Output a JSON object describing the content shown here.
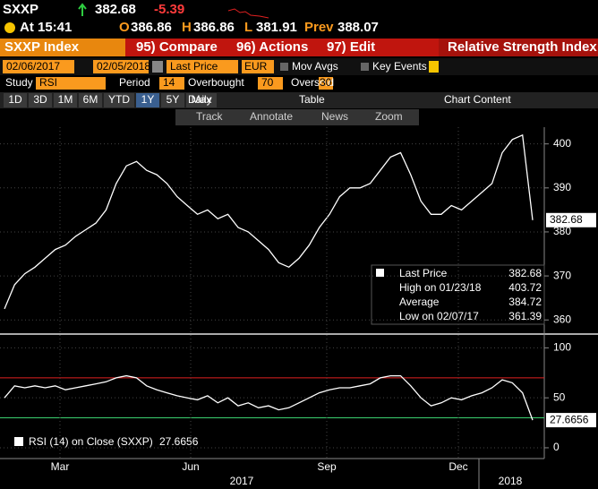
{
  "header": {
    "ticker": "SXXP",
    "last": 382.68,
    "change": -5.39,
    "time": "At 15:41",
    "open_label": "O",
    "open": 386.86,
    "high_label": "H",
    "high": 386.86,
    "low_label": "L",
    "low": 381.91,
    "prev_label": "Prev",
    "prev": 388.07
  },
  "toolbar": {
    "security": "SXXP Index",
    "compare": "95) Compare",
    "actions": "96) Actions",
    "edit": "97) Edit",
    "function_title": "Relative Strength Index"
  },
  "settings": {
    "start_date": "02/06/2017",
    "end_date": "02/05/2018",
    "field": "Last Price",
    "currency": "EUR",
    "mov_avgs": "Mov Avgs",
    "key_events": "Key Events"
  },
  "study": {
    "label": "Study",
    "name": "RSI",
    "period_label": "Period",
    "period": 14,
    "overbought_label": "Overbought",
    "overbought": 70,
    "oversold_label": "Oversold",
    "oversold": 30
  },
  "ranges": [
    "1D",
    "3D",
    "1M",
    "6M",
    "YTD",
    "1Y",
    "5Y",
    "Max"
  ],
  "selected_range": 5,
  "frequency": "Daily",
  "table": "Table",
  "chart_content": "Chart Content",
  "chart_tools": [
    "Track",
    "Annotate",
    "News",
    "Zoom"
  ],
  "chart_data": [
    {
      "type": "line",
      "series": [
        {
          "name": "Last Price",
          "color": "#ffffff",
          "values": [
            362.5,
            368,
            370.5,
            372,
            374,
            376,
            377,
            379,
            380.5,
            382,
            385,
            391,
            395,
            396,
            394,
            393,
            391,
            388,
            386,
            384,
            385,
            383,
            384,
            381,
            380,
            378,
            376,
            373,
            372,
            374,
            377,
            381,
            384,
            388,
            390,
            390,
            391,
            394,
            397,
            398,
            393,
            387,
            384,
            384,
            386,
            385,
            387,
            389,
            391,
            398,
            401,
            402,
            382.68
          ]
        }
      ],
      "ylim": [
        357.4,
        403.8
      ],
      "yticks": [
        360,
        370,
        380,
        390,
        400
      ],
      "legend": [
        {
          "label": "High on 01/23/18",
          "value": 403.72
        },
        {
          "label": "Average",
          "value": 384.72
        },
        {
          "label": "Low on 02/07/17",
          "value": 361.39
        }
      ]
    },
    {
      "type": "line",
      "series": [
        {
          "name": "RSI (14) on Close (SXXP)",
          "color": "#ffffff",
          "values": [
            50,
            62,
            60,
            62,
            60,
            62,
            58,
            60,
            62,
            64,
            66,
            70,
            72,
            70,
            62,
            58,
            55,
            52,
            50,
            48,
            52,
            45,
            50,
            42,
            45,
            40,
            42,
            38,
            40,
            45,
            50,
            55,
            58,
            60,
            60,
            62,
            64,
            70,
            72,
            72,
            62,
            50,
            42,
            45,
            50,
            48,
            52,
            55,
            60,
            68,
            65,
            55,
            27.6656
          ]
        }
      ],
      "ylim": [
        -9,
        112
      ],
      "yticks": [
        0,
        50,
        100
      ]
    }
  ],
  "x_labels": [
    "Mar",
    "Jun",
    "Sep",
    "Dec"
  ],
  "years": [
    "2017",
    "2018"
  ]
}
